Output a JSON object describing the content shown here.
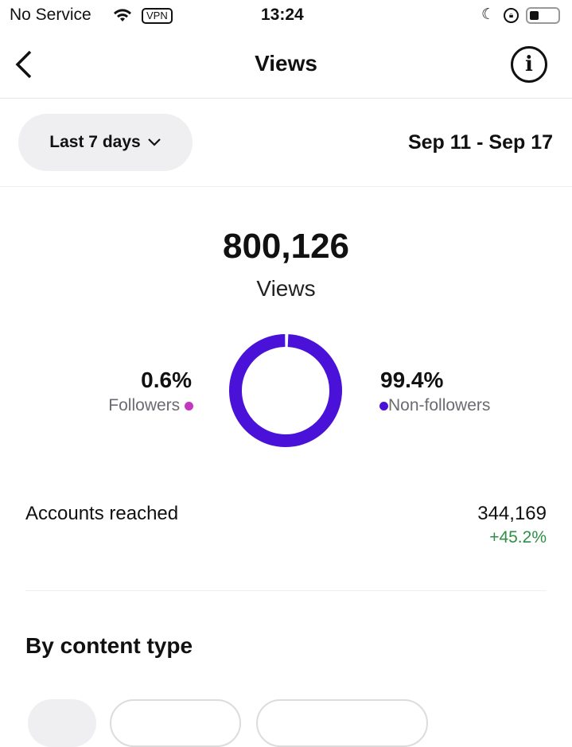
{
  "status_bar": {
    "carrier": "No Service",
    "vpn": "VPN",
    "time": "13:24"
  },
  "header": {
    "title": "Views"
  },
  "filter": {
    "range_label": "Last 7 days",
    "date_range": "Sep 11 - Sep 17"
  },
  "summary": {
    "total": "800,126",
    "label": "Views"
  },
  "chart_data": {
    "type": "pie",
    "categories": [
      "Followers",
      "Non-followers"
    ],
    "values": [
      0.6,
      99.4
    ],
    "colors": [
      "#c535c0",
      "#4a12d8"
    ],
    "labels": [
      "0.6%",
      "99.4%"
    ]
  },
  "accounts": {
    "label": "Accounts reached",
    "value": "344,169",
    "change": "+45.2%"
  },
  "content_type": {
    "title": "By content type"
  }
}
